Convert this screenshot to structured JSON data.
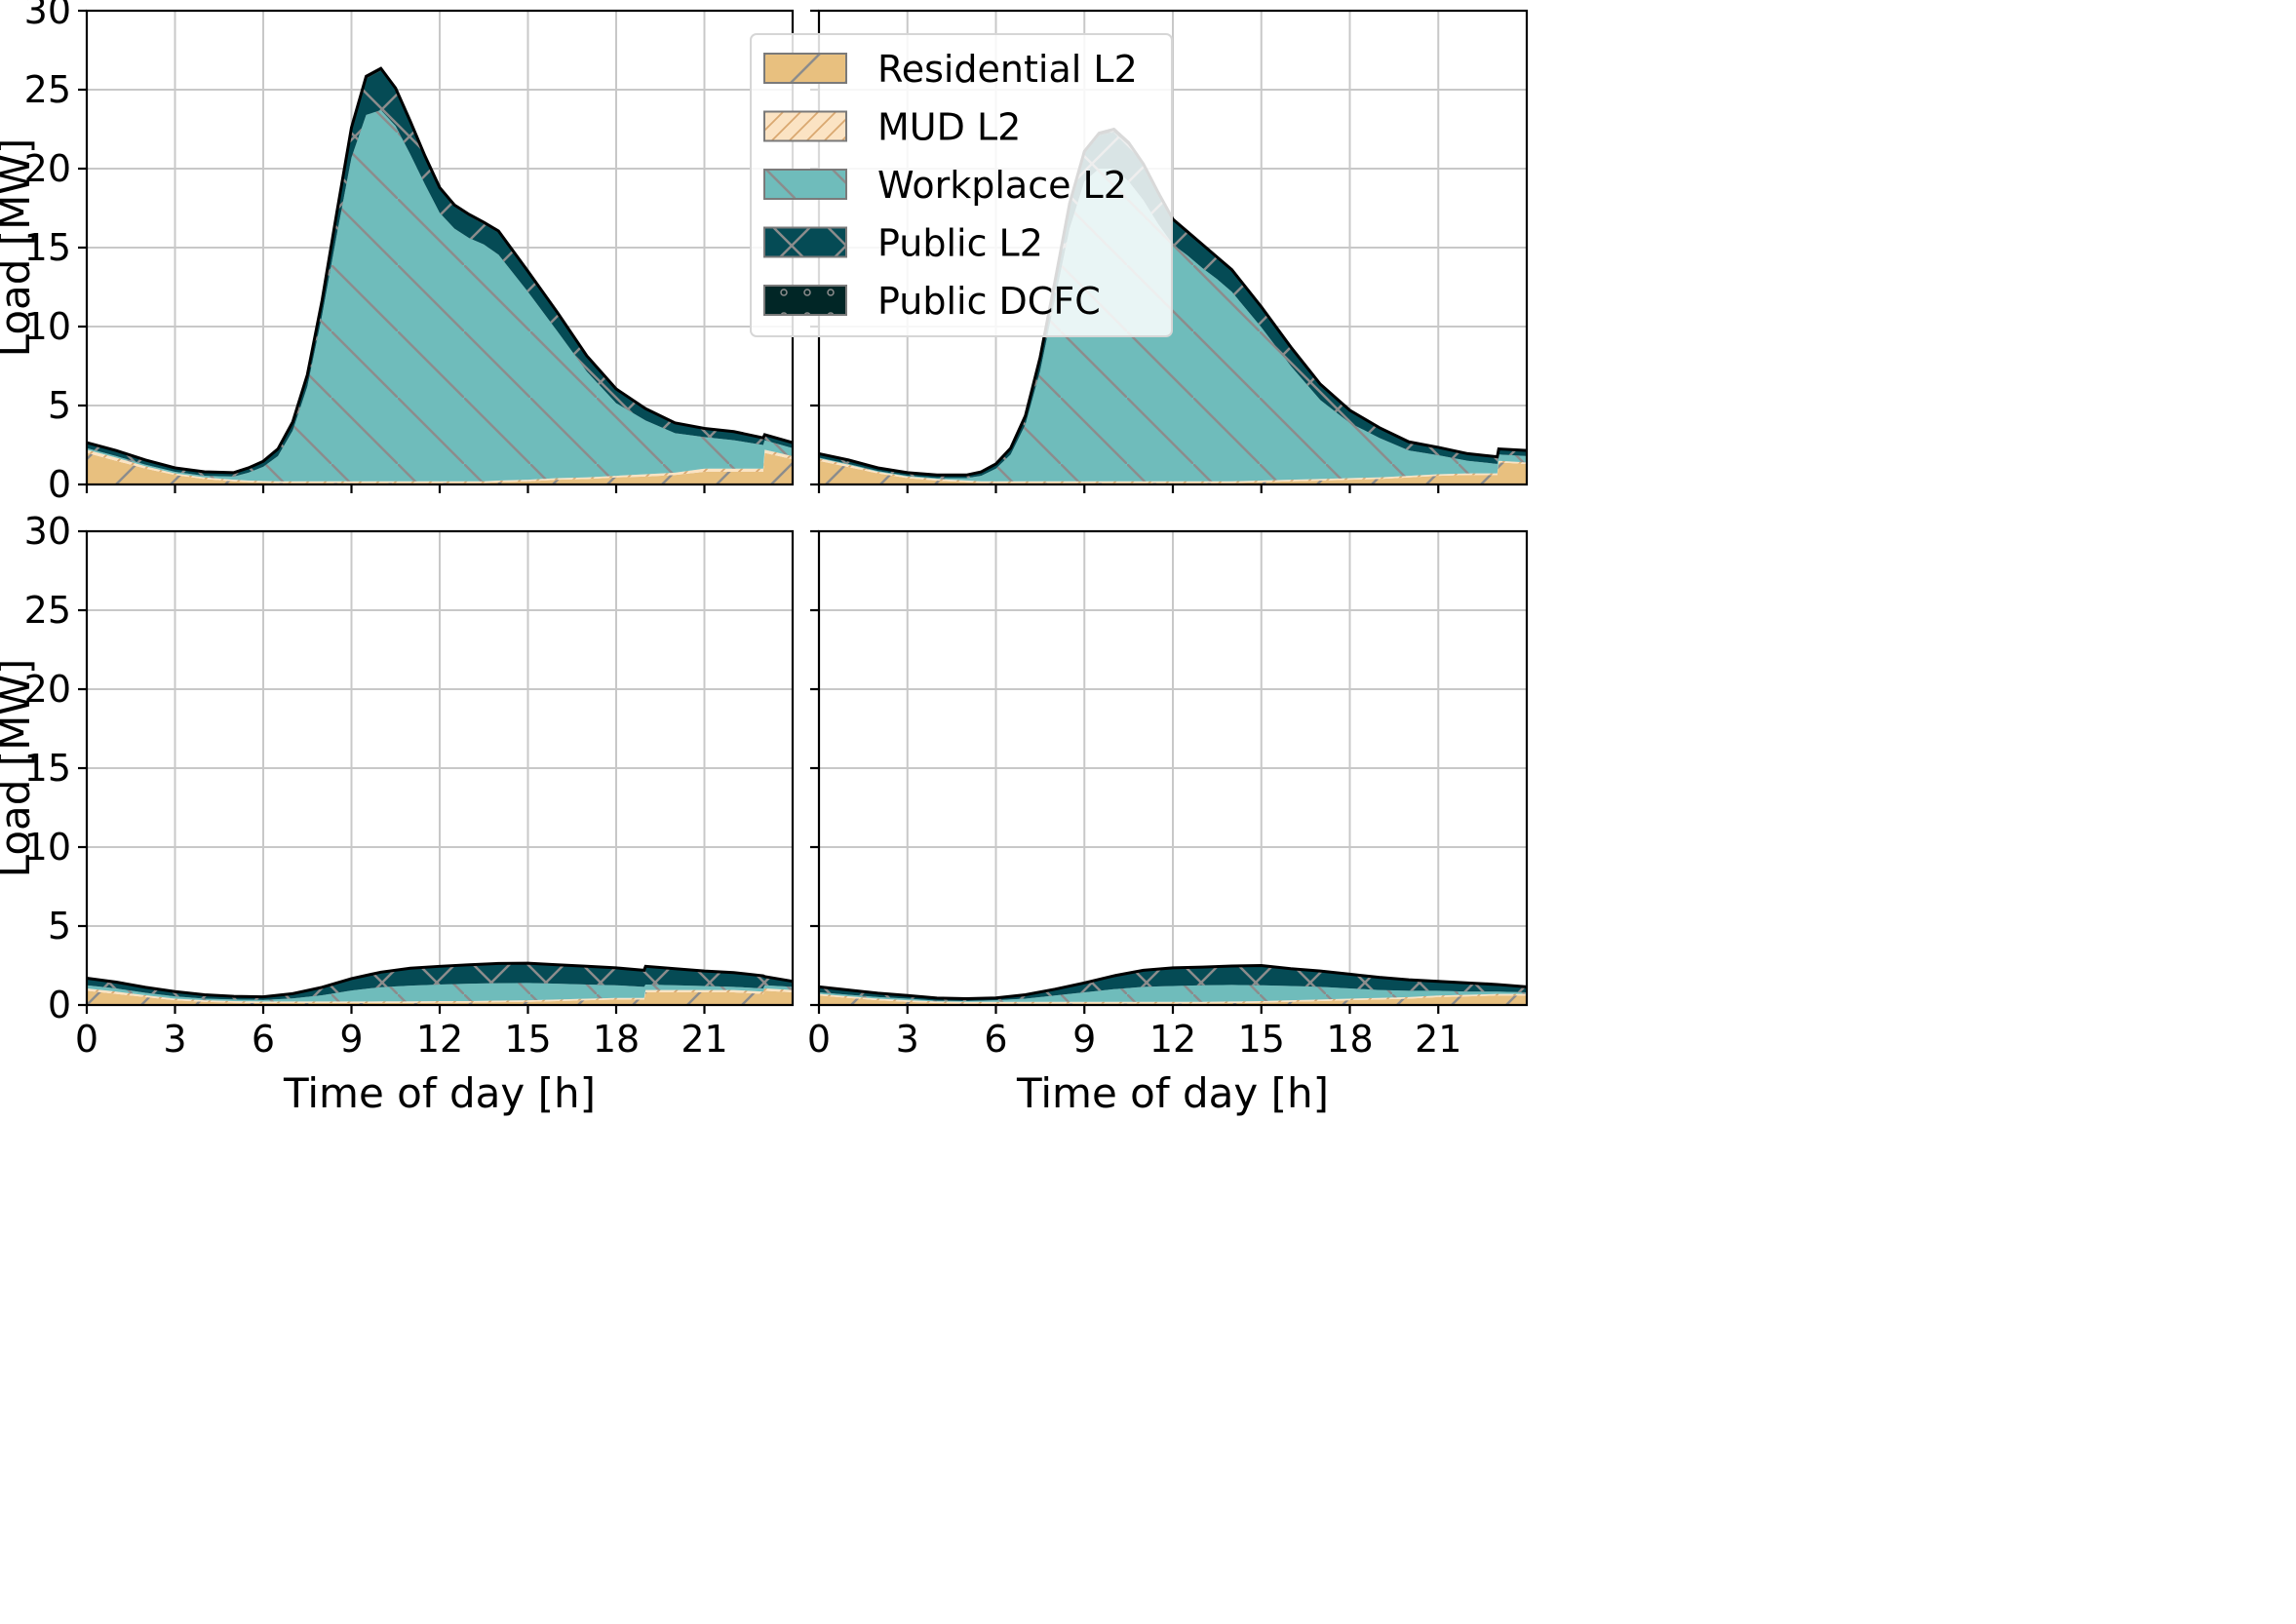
{
  "chart_data": {
    "type": "area",
    "stacked": true,
    "grid": true,
    "legend_placement": "upper-right of top-left panel",
    "xlabel": "Time of day [h]",
    "ylabel": "Load [MW]",
    "xlim": [
      0,
      24
    ],
    "ylim": [
      0,
      30
    ],
    "xticks": [
      0,
      3,
      6,
      9,
      12,
      15,
      18,
      21
    ],
    "yticks": [
      0,
      5,
      10,
      15,
      20,
      25,
      30
    ],
    "series": [
      {
        "name": "Residential L2",
        "color": "#e8c07f",
        "hatch": "/"
      },
      {
        "name": "MUD L2",
        "color": "#fbe3c3",
        "hatch": "///"
      },
      {
        "name": "Workplace L2",
        "color": "#6fbcbb",
        "hatch": "\\"
      },
      {
        "name": "Public L2",
        "color": "#054b55",
        "hatch": "x"
      },
      {
        "name": "Public DCFC",
        "color": "#012626",
        "hatch": "o"
      }
    ],
    "panels": [
      {
        "x": [
          0,
          1,
          2,
          3,
          4,
          5,
          5.5,
          6,
          6.5,
          7,
          7.5,
          8,
          8.5,
          9,
          9.5,
          10,
          10.5,
          11,
          11.5,
          12,
          12.5,
          13,
          13.5,
          14,
          15,
          16,
          17,
          18,
          19,
          20,
          21,
          22,
          23,
          23.05,
          24
        ],
        "residential": [
          2.0,
          1.5,
          1.0,
          0.6,
          0.35,
          0.2,
          0.15,
          0.12,
          0.1,
          0.1,
          0.1,
          0.1,
          0.1,
          0.1,
          0.1,
          0.1,
          0.1,
          0.1,
          0.1,
          0.1,
          0.1,
          0.1,
          0.1,
          0.15,
          0.2,
          0.3,
          0.35,
          0.45,
          0.5,
          0.6,
          0.8,
          0.8,
          0.8,
          2.0,
          1.6
        ],
        "mud": [
          0.2,
          0.2,
          0.15,
          0.1,
          0.1,
          0.1,
          0.1,
          0.1,
          0.1,
          0.1,
          0.1,
          0.1,
          0.1,
          0.1,
          0.1,
          0.1,
          0.1,
          0.1,
          0.1,
          0.1,
          0.1,
          0.1,
          0.1,
          0.1,
          0.1,
          0.1,
          0.1,
          0.1,
          0.15,
          0.15,
          0.2,
          0.2,
          0.2,
          0.2,
          0.2
        ],
        "workplace": [
          0.1,
          0.1,
          0.1,
          0.1,
          0.1,
          0.2,
          0.5,
          0.9,
          1.6,
          3.2,
          6.0,
          10.5,
          15.6,
          20.5,
          23.2,
          23.5,
          22.5,
          20.7,
          18.8,
          17.0,
          16.0,
          15.4,
          15.0,
          14.3,
          11.9,
          9.3,
          6.7,
          4.6,
          3.4,
          2.5,
          2.0,
          1.8,
          1.5,
          0.6,
          0.5
        ],
        "public_l2": [
          0.3,
          0.3,
          0.25,
          0.2,
          0.2,
          0.2,
          0.25,
          0.3,
          0.4,
          0.5,
          0.7,
          0.9,
          1.3,
          1.8,
          2.3,
          2.5,
          2.3,
          2.0,
          1.7,
          1.5,
          1.4,
          1.4,
          1.3,
          1.4,
          1.2,
          1.1,
          0.9,
          0.8,
          0.7,
          0.6,
          0.5,
          0.5,
          0.4,
          0.3,
          0.3
        ],
        "public_dcfc": [
          0.05,
          0.05,
          0.05,
          0.05,
          0.05,
          0.05,
          0.05,
          0.05,
          0.05,
          0.05,
          0.05,
          0.05,
          0.1,
          0.1,
          0.15,
          0.15,
          0.1,
          0.1,
          0.1,
          0.1,
          0.1,
          0.1,
          0.1,
          0.1,
          0.1,
          0.1,
          0.1,
          0.1,
          0.05,
          0.05,
          0.05,
          0.05,
          0.05,
          0.05,
          0.05
        ]
      },
      {
        "x": [
          0,
          1,
          2,
          3,
          4,
          5,
          5.5,
          6,
          6.5,
          7,
          7.5,
          8,
          8.5,
          9,
          9.5,
          10,
          10.5,
          11,
          11.5,
          12,
          12.5,
          13,
          13.5,
          14,
          15,
          16,
          17,
          18,
          19,
          20,
          21,
          22,
          23,
          23.05,
          24
        ],
        "residential": [
          1.5,
          1.1,
          0.7,
          0.4,
          0.25,
          0.15,
          0.1,
          0.1,
          0.1,
          0.1,
          0.1,
          0.1,
          0.1,
          0.1,
          0.1,
          0.1,
          0.1,
          0.1,
          0.1,
          0.1,
          0.1,
          0.1,
          0.1,
          0.1,
          0.15,
          0.2,
          0.25,
          0.3,
          0.35,
          0.45,
          0.55,
          0.6,
          0.6,
          1.4,
          1.3
        ],
        "mud": [
          0.15,
          0.15,
          0.1,
          0.1,
          0.1,
          0.1,
          0.1,
          0.1,
          0.1,
          0.1,
          0.1,
          0.1,
          0.1,
          0.1,
          0.1,
          0.1,
          0.1,
          0.1,
          0.1,
          0.1,
          0.1,
          0.1,
          0.1,
          0.1,
          0.1,
          0.1,
          0.1,
          0.1,
          0.1,
          0.1,
          0.1,
          0.1,
          0.1,
          0.1,
          0.1
        ],
        "workplace": [
          0.05,
          0.05,
          0.05,
          0.05,
          0.05,
          0.15,
          0.35,
          0.8,
          1.7,
          3.6,
          7.0,
          11.5,
          16.0,
          19.0,
          19.8,
          19.8,
          19.0,
          17.8,
          16.3,
          15.0,
          14.3,
          13.5,
          12.8,
          12.0,
          9.7,
          7.2,
          5.0,
          3.5,
          2.5,
          1.6,
          1.2,
          0.8,
          0.6,
          0.4,
          0.4
        ],
        "public_l2": [
          0.2,
          0.2,
          0.15,
          0.15,
          0.15,
          0.15,
          0.2,
          0.25,
          0.35,
          0.5,
          0.8,
          1.1,
          1.5,
          1.8,
          2.1,
          2.3,
          2.3,
          2.2,
          1.9,
          1.5,
          1.4,
          1.4,
          1.3,
          1.3,
          1.2,
          1.1,
          0.9,
          0.7,
          0.6,
          0.5,
          0.45,
          0.4,
          0.4,
          0.3,
          0.3
        ],
        "public_dcfc": [
          0.05,
          0.05,
          0.05,
          0.05,
          0.05,
          0.05,
          0.05,
          0.05,
          0.05,
          0.05,
          0.05,
          0.05,
          0.1,
          0.1,
          0.15,
          0.2,
          0.15,
          0.1,
          0.1,
          0.1,
          0.1,
          0.1,
          0.1,
          0.1,
          0.1,
          0.1,
          0.1,
          0.1,
          0.05,
          0.05,
          0.05,
          0.05,
          0.05,
          0.05,
          0.05
        ]
      },
      {
        "x": [
          0,
          1,
          2,
          3,
          4,
          5,
          6,
          7,
          8,
          9,
          10,
          11,
          12,
          13,
          14,
          15,
          16,
          17,
          18,
          18.95,
          19,
          20,
          21,
          22,
          23,
          23.05,
          24
        ],
        "residential": [
          0.9,
          0.7,
          0.5,
          0.3,
          0.2,
          0.15,
          0.12,
          0.12,
          0.12,
          0.12,
          0.13,
          0.13,
          0.15,
          0.15,
          0.18,
          0.2,
          0.25,
          0.3,
          0.35,
          0.35,
          0.8,
          0.8,
          0.8,
          0.8,
          0.7,
          0.9,
          0.8
        ],
        "mud": [
          0.15,
          0.15,
          0.12,
          0.1,
          0.1,
          0.1,
          0.1,
          0.1,
          0.1,
          0.1,
          0.1,
          0.1,
          0.1,
          0.1,
          0.1,
          0.1,
          0.1,
          0.1,
          0.1,
          0.1,
          0.15,
          0.15,
          0.15,
          0.15,
          0.15,
          0.15,
          0.15
        ],
        "workplace": [
          0.2,
          0.2,
          0.15,
          0.15,
          0.1,
          0.1,
          0.1,
          0.2,
          0.4,
          0.7,
          0.9,
          1.0,
          1.05,
          1.1,
          1.1,
          1.1,
          1.0,
          0.9,
          0.8,
          0.7,
          0.35,
          0.3,
          0.25,
          0.2,
          0.2,
          0.2,
          0.2
        ],
        "public_l2": [
          0.4,
          0.35,
          0.3,
          0.25,
          0.2,
          0.15,
          0.15,
          0.25,
          0.45,
          0.7,
          0.9,
          1.05,
          1.1,
          1.15,
          1.2,
          1.2,
          1.15,
          1.1,
          1.05,
          1.0,
          1.1,
          1.0,
          0.9,
          0.85,
          0.75,
          0.5,
          0.3
        ],
        "public_dcfc": [
          0.05,
          0.05,
          0.05,
          0.05,
          0.05,
          0.05,
          0.05,
          0.05,
          0.05,
          0.05,
          0.05,
          0.05,
          0.05,
          0.05,
          0.05,
          0.05,
          0.05,
          0.05,
          0.05,
          0.05,
          0.05,
          0.05,
          0.05,
          0.05,
          0.05,
          0.05,
          0.05
        ]
      },
      {
        "x": [
          0,
          1,
          2,
          3,
          4,
          5,
          6,
          7,
          8,
          9,
          10,
          11,
          12,
          13,
          14,
          15,
          16,
          17,
          18,
          19,
          20,
          21,
          22,
          23,
          24
        ],
        "residential": [
          0.6,
          0.45,
          0.3,
          0.2,
          0.12,
          0.1,
          0.1,
          0.1,
          0.1,
          0.1,
          0.1,
          0.1,
          0.1,
          0.1,
          0.12,
          0.15,
          0.2,
          0.25,
          0.3,
          0.35,
          0.4,
          0.5,
          0.55,
          0.6,
          0.6
        ],
        "mud": [
          0.1,
          0.1,
          0.1,
          0.1,
          0.1,
          0.1,
          0.1,
          0.1,
          0.1,
          0.1,
          0.1,
          0.1,
          0.1,
          0.1,
          0.1,
          0.1,
          0.1,
          0.1,
          0.1,
          0.1,
          0.1,
          0.1,
          0.1,
          0.1,
          0.1
        ],
        "workplace": [
          0.1,
          0.1,
          0.1,
          0.1,
          0.05,
          0.05,
          0.1,
          0.2,
          0.4,
          0.6,
          0.8,
          0.95,
          1.0,
          1.05,
          1.05,
          1.0,
          0.9,
          0.8,
          0.65,
          0.5,
          0.4,
          0.3,
          0.2,
          0.15,
          0.1
        ],
        "public_l2": [
          0.3,
          0.25,
          0.2,
          0.15,
          0.12,
          0.1,
          0.1,
          0.2,
          0.35,
          0.55,
          0.8,
          1.0,
          1.1,
          1.1,
          1.15,
          1.2,
          1.05,
          0.95,
          0.85,
          0.75,
          0.65,
          0.55,
          0.5,
          0.4,
          0.3
        ],
        "public_dcfc": [
          0.05,
          0.05,
          0.05,
          0.05,
          0.05,
          0.05,
          0.05,
          0.05,
          0.05,
          0.05,
          0.05,
          0.05,
          0.05,
          0.05,
          0.05,
          0.05,
          0.05,
          0.05,
          0.05,
          0.05,
          0.05,
          0.05,
          0.05,
          0.05,
          0.05
        ]
      }
    ]
  }
}
